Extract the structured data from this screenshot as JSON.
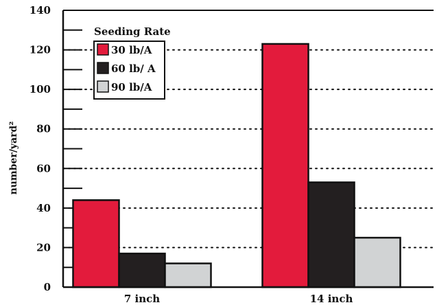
{
  "chart_data": {
    "type": "bar",
    "title": "",
    "xlabel": "",
    "ylabel": "number/yard²",
    "ylim": [
      0,
      140
    ],
    "yticks": [
      0,
      20,
      40,
      60,
      80,
      100,
      120,
      140
    ],
    "minor_step": 10,
    "grid": "dotted-horizontal",
    "categories": [
      "7 inch",
      "14 inch"
    ],
    "legend": {
      "title": "Seeding Rate",
      "placement": "top-left"
    },
    "series": [
      {
        "name": "30 lb/A",
        "color": "#e31b3c",
        "values": [
          44,
          123
        ]
      },
      {
        "name": "60 lb/ A",
        "color": "#231f20",
        "values": [
          17,
          53
        ]
      },
      {
        "name": "90 lb/A",
        "color": "#d1d3d4",
        "values": [
          12,
          25
        ]
      }
    ]
  }
}
